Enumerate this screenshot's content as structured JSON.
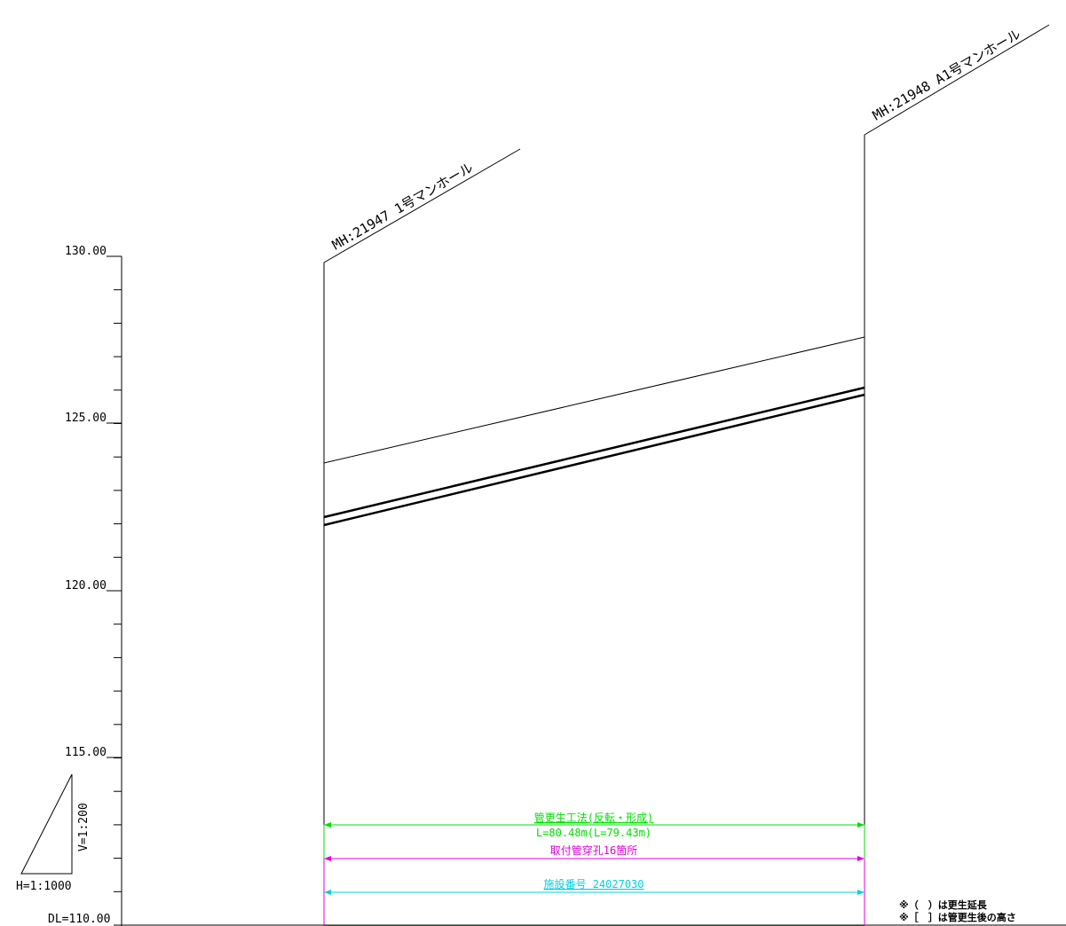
{
  "vertical_scale": {
    "ticks": [
      "130.00",
      "125.00",
      "120.00",
      "115.00"
    ],
    "datum_label": "DL=110.00"
  },
  "scale_legend": {
    "vertical": "V=1:200",
    "horizontal": "H=1:1000"
  },
  "manholes": [
    {
      "label": "MH:21947  1号マンホール"
    },
    {
      "label": "MH:21948  A1号マンホール"
    }
  ],
  "annotations": {
    "method": "管更生工法(反転・形成)",
    "length": "L=80.48m(L=79.43m)",
    "holes": "取付管穿孔16箇所",
    "facility": "施設番号 24027030"
  },
  "colors": {
    "method": "#00e000",
    "holes": "#e000e0",
    "facility": "#00d0e0"
  },
  "notes": [
    "※（　）は更生延長",
    "※［　］は管更生後の高さ"
  ]
}
